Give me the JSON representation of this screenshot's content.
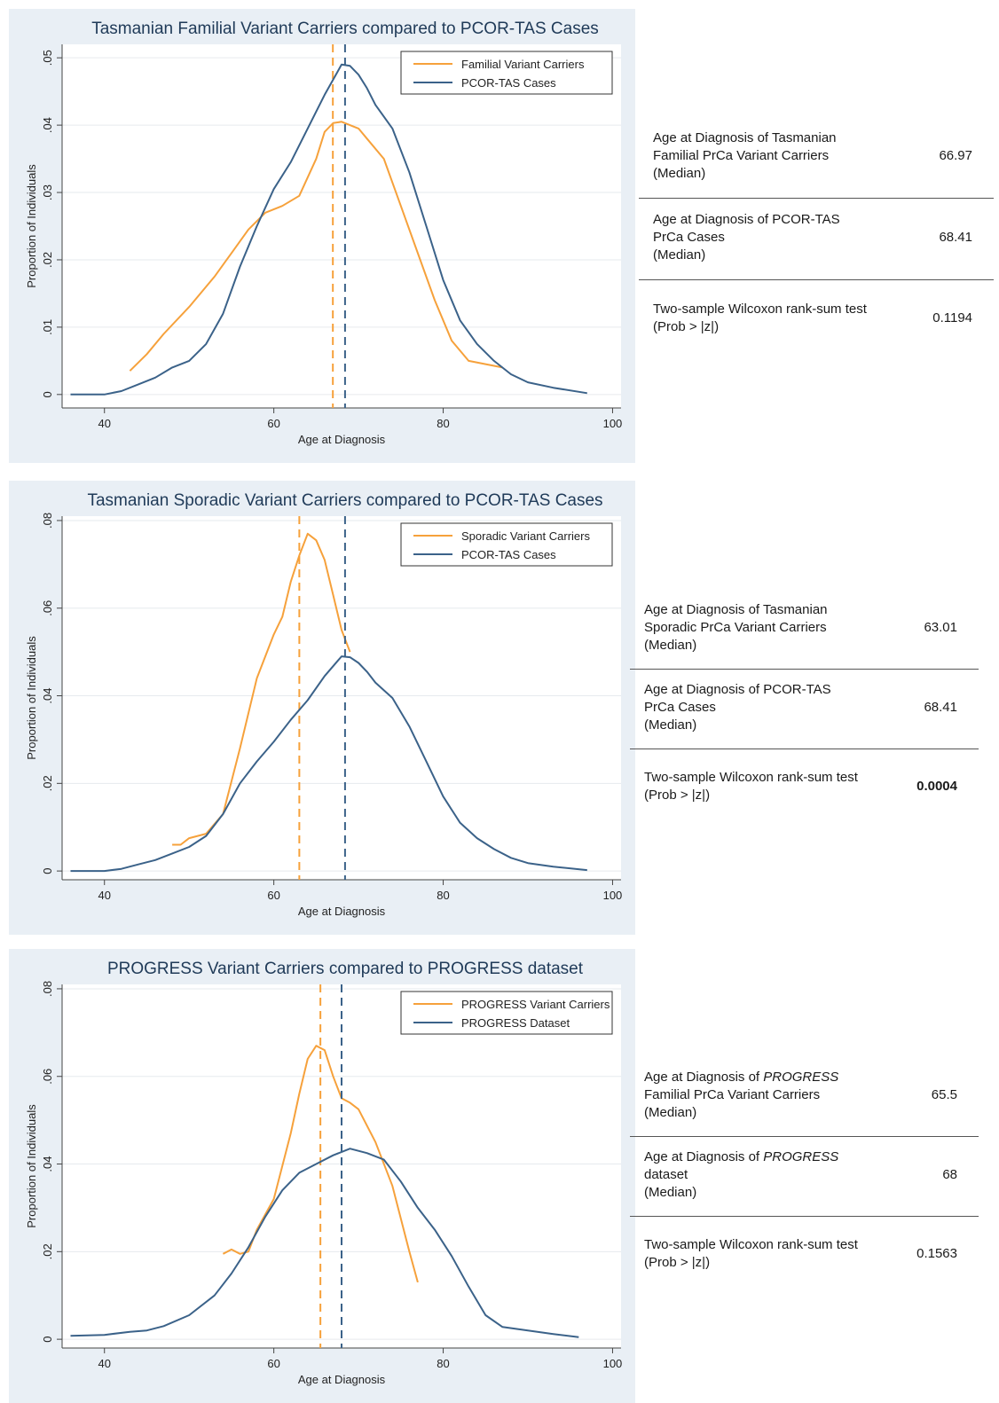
{
  "colors": {
    "panel_bg": "#e9eff5",
    "carrier": "#f6a13b",
    "reference": "#3b6289",
    "title": "#1f3a58"
  },
  "chart_data": [
    {
      "type": "line",
      "title": "Tasmanian Familial Variant Carriers compared to PCOR-TAS Cases",
      "xlabel": "Age at Diagnosis",
      "ylabel": "Proportion of Individuals",
      "xlim": [
        35,
        101
      ],
      "ylim": [
        -0.002,
        0.052
      ],
      "xticks": [
        40,
        60,
        80,
        100
      ],
      "xtick_labels": [
        "40",
        "60",
        "80",
        "100"
      ],
      "yticks": [
        0,
        0.01,
        0.02,
        0.03,
        0.04,
        0.05
      ],
      "ytick_labels": [
        "0",
        ".01",
        ".02",
        ".03",
        ".04",
        ".05"
      ],
      "legend": "top-right",
      "grid": true,
      "series": [
        {
          "name": "Familial Variant Carriers",
          "color": "#f6a13b",
          "points": [
            [
              43,
              0.0035
            ],
            [
              45,
              0.006
            ],
            [
              47,
              0.009
            ],
            [
              50,
              0.013
            ],
            [
              53,
              0.0175
            ],
            [
              55,
              0.021
            ],
            [
              57,
              0.0245
            ],
            [
              59,
              0.027
            ],
            [
              61,
              0.028
            ],
            [
              63,
              0.0295
            ],
            [
              65,
              0.035
            ],
            [
              66,
              0.039
            ],
            [
              67,
              0.0403
            ],
            [
              68,
              0.0405
            ],
            [
              70,
              0.0395
            ],
            [
              71,
              0.038
            ],
            [
              73,
              0.035
            ],
            [
              75,
              0.028
            ],
            [
              77,
              0.021
            ],
            [
              79,
              0.014
            ],
            [
              81,
              0.008
            ],
            [
              83,
              0.005
            ],
            [
              85,
              0.0045
            ],
            [
              87,
              0.004
            ]
          ],
          "median": 66.97
        },
        {
          "name": "PCOR-TAS Cases",
          "color": "#3b6289",
          "points": [
            [
              36,
              0
            ],
            [
              40,
              0
            ],
            [
              42,
              0.0005
            ],
            [
              44,
              0.0015
            ],
            [
              46,
              0.0025
            ],
            [
              48,
              0.004
            ],
            [
              50,
              0.005
            ],
            [
              52,
              0.0075
            ],
            [
              54,
              0.012
            ],
            [
              56,
              0.019
            ],
            [
              58,
              0.025
            ],
            [
              60,
              0.0305
            ],
            [
              62,
              0.0345
            ],
            [
              64,
              0.0395
            ],
            [
              66,
              0.0445
            ],
            [
              68,
              0.049
            ],
            [
              69,
              0.0488
            ],
            [
              70,
              0.0475
            ],
            [
              71,
              0.0455
            ],
            [
              72,
              0.043
            ],
            [
              74,
              0.0395
            ],
            [
              76,
              0.033
            ],
            [
              78,
              0.025
            ],
            [
              80,
              0.017
            ],
            [
              82,
              0.011
            ],
            [
              84,
              0.0075
            ],
            [
              86,
              0.005
            ],
            [
              88,
              0.003
            ],
            [
              90,
              0.0018
            ],
            [
              93,
              0.001
            ],
            [
              97,
              0.0002
            ]
          ],
          "median": 68.41
        }
      ],
      "stats": [
        {
          "label_lines": [
            "Age at Diagnosis of Tasmanian",
            "Familial PrCa Variant Carriers",
            "(Median)"
          ],
          "value": "66.97"
        },
        {
          "label_lines": [
            "Age at Diagnosis of PCOR-TAS",
            "PrCa Cases",
            "(Median)"
          ],
          "value": "68.41"
        },
        {
          "label_lines": [
            "Two-sample Wilcoxon rank-sum test",
            "(Prob > |z|)"
          ],
          "value": "0.1194"
        }
      ]
    },
    {
      "type": "line",
      "title": "Tasmanian Sporadic Variant Carriers compared to PCOR-TAS Cases",
      "xlabel": "Age at Diagnosis",
      "ylabel": "Proportion of Individuals",
      "xlim": [
        35,
        101
      ],
      "ylim": [
        -0.002,
        0.081
      ],
      "xticks": [
        40,
        60,
        80,
        100
      ],
      "xtick_labels": [
        "40",
        "60",
        "80",
        "100"
      ],
      "yticks": [
        0,
        0.02,
        0.04,
        0.06,
        0.08
      ],
      "ytick_labels": [
        "0",
        ".02",
        ".04",
        ".06",
        ".08"
      ],
      "legend": "top-right",
      "grid": true,
      "series": [
        {
          "name": "Sporadic Variant Carriers",
          "color": "#f6a13b",
          "points": [
            [
              48,
              0.006
            ],
            [
              49,
              0.006
            ],
            [
              50,
              0.0075
            ],
            [
              52,
              0.0085
            ],
            [
              54,
              0.013
            ],
            [
              56,
              0.028
            ],
            [
              58,
              0.044
            ],
            [
              60,
              0.054
            ],
            [
              61,
              0.058
            ],
            [
              62,
              0.066
            ],
            [
              63,
              0.072
            ],
            [
              64,
              0.077
            ],
            [
              65,
              0.0755
            ],
            [
              66,
              0.071
            ],
            [
              67,
              0.063
            ],
            [
              68,
              0.055
            ],
            [
              69,
              0.05
            ]
          ],
          "median": 63.01
        },
        {
          "name": "PCOR-TAS Cases",
          "color": "#3b6289",
          "points": [
            [
              36,
              0
            ],
            [
              40,
              0
            ],
            [
              42,
              0.0005
            ],
            [
              44,
              0.0015
            ],
            [
              46,
              0.0025
            ],
            [
              48,
              0.004
            ],
            [
              50,
              0.0055
            ],
            [
              52,
              0.008
            ],
            [
              54,
              0.013
            ],
            [
              56,
              0.02
            ],
            [
              58,
              0.025
            ],
            [
              60,
              0.0295
            ],
            [
              62,
              0.0345
            ],
            [
              64,
              0.039
            ],
            [
              66,
              0.0445
            ],
            [
              68,
              0.049
            ],
            [
              69,
              0.0488
            ],
            [
              70,
              0.0475
            ],
            [
              71,
              0.0455
            ],
            [
              72,
              0.043
            ],
            [
              74,
              0.0395
            ],
            [
              76,
              0.033
            ],
            [
              78,
              0.025
            ],
            [
              80,
              0.017
            ],
            [
              82,
              0.011
            ],
            [
              84,
              0.0075
            ],
            [
              86,
              0.005
            ],
            [
              88,
              0.003
            ],
            [
              90,
              0.0018
            ],
            [
              93,
              0.001
            ],
            [
              97,
              0.0002
            ]
          ],
          "median": 68.41
        }
      ],
      "stats": [
        {
          "label_lines": [
            "Age at Diagnosis of Tasmanian",
            "Sporadic PrCa Variant Carriers",
            "(Median)"
          ],
          "value": "63.01"
        },
        {
          "label_lines": [
            "Age at Diagnosis of PCOR-TAS",
            "PrCa Cases",
            "(Median)"
          ],
          "value": "68.41"
        },
        {
          "label_lines": [
            "Two-sample Wilcoxon rank-sum test",
            "(Prob > |z|)"
          ],
          "value": "0.0004",
          "bold": true
        }
      ]
    },
    {
      "type": "line",
      "title": "PROGRESS Variant Carriers compared to PROGRESS dataset",
      "xlabel": "Age at Diagnosis",
      "ylabel": "Proportion of Individuals",
      "xlim": [
        35,
        101
      ],
      "ylim": [
        -0.002,
        0.081
      ],
      "xticks": [
        40,
        60,
        80,
        100
      ],
      "xtick_labels": [
        "40",
        "60",
        "80",
        "100"
      ],
      "yticks": [
        0,
        0.02,
        0.04,
        0.06,
        0.08
      ],
      "ytick_labels": [
        "0",
        ".02",
        ".04",
        ".06",
        ".08"
      ],
      "legend": "top-right",
      "grid": true,
      "series": [
        {
          "name": "PROGRESS Variant Carriers",
          "color": "#f6a13b",
          "points": [
            [
              54,
              0.0195
            ],
            [
              55,
              0.0205
            ],
            [
              56,
              0.0195
            ],
            [
              57,
              0.02
            ],
            [
              58,
              0.025
            ],
            [
              60,
              0.032
            ],
            [
              62,
              0.047
            ],
            [
              63,
              0.056
            ],
            [
              64,
              0.064
            ],
            [
              65,
              0.067
            ],
            [
              66,
              0.066
            ],
            [
              67,
              0.06
            ],
            [
              68,
              0.055
            ],
            [
              69,
              0.054
            ],
            [
              70,
              0.0525
            ],
            [
              72,
              0.045
            ],
            [
              74,
              0.035
            ],
            [
              76,
              0.02
            ],
            [
              77,
              0.013
            ]
          ],
          "median": 65.5
        },
        {
          "name": "PROGRESS Dataset",
          "color": "#3b6289",
          "points": [
            [
              36,
              0.0008
            ],
            [
              40,
              0.001
            ],
            [
              43,
              0.0017
            ],
            [
              45,
              0.002
            ],
            [
              47,
              0.003
            ],
            [
              50,
              0.0055
            ],
            [
              53,
              0.01
            ],
            [
              55,
              0.015
            ],
            [
              57,
              0.021
            ],
            [
              59,
              0.028
            ],
            [
              61,
              0.034
            ],
            [
              63,
              0.038
            ],
            [
              65,
              0.04
            ],
            [
              67,
              0.042
            ],
            [
              69,
              0.0435
            ],
            [
              71,
              0.0425
            ],
            [
              73,
              0.041
            ],
            [
              75,
              0.036
            ],
            [
              77,
              0.03
            ],
            [
              79,
              0.025
            ],
            [
              81,
              0.019
            ],
            [
              83,
              0.012
            ],
            [
              85,
              0.0055
            ],
            [
              87,
              0.0028
            ],
            [
              90,
              0.002
            ],
            [
              93,
              0.0012
            ],
            [
              96,
              0.0005
            ]
          ],
          "median": 68
        }
      ],
      "stats": [
        {
          "label_lines": [
            "Age at Diagnosis of PROGRESS",
            "Familial PrCa Variant Carriers",
            "(Median)"
          ],
          "value": "65.5"
        },
        {
          "label_lines": [
            "Age at Diagnosis of PROGRESS",
            "dataset",
            "(Median)"
          ],
          "value": "68"
        },
        {
          "label_lines": [
            "Two-sample Wilcoxon rank-sum test",
            "(Prob > |z|)"
          ],
          "value": "0.1563"
        }
      ]
    }
  ]
}
